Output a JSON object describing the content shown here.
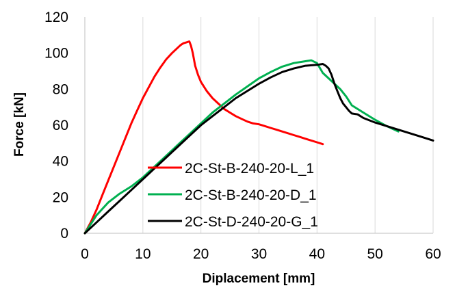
{
  "chart_data": {
    "type": "line",
    "xlabel": "Diplacement [mm]",
    "ylabel": "Force [kN]",
    "xlim": [
      0,
      60
    ],
    "ylim": [
      0,
      120
    ],
    "xticks": [
      "0",
      "10",
      "20",
      "30",
      "40",
      "50",
      "60"
    ],
    "yticks": [
      "0",
      "20",
      "40",
      "60",
      "80",
      "100",
      "120"
    ],
    "grid": "vertical",
    "legend_position": "lower-center",
    "series": [
      {
        "name": "2C-St-B-240-20-L_1",
        "color": "#ff0000",
        "x": [
          0,
          1,
          2,
          3,
          4,
          5,
          6,
          7,
          8,
          9,
          10,
          11,
          12,
          13,
          14,
          15,
          16,
          16.5,
          17,
          17.5,
          18,
          18.3,
          18.6,
          19,
          19.5,
          20,
          21,
          22,
          23,
          24,
          25,
          26,
          27,
          28,
          29,
          30,
          31,
          32,
          33,
          34,
          35,
          36,
          37,
          38,
          39,
          40,
          41
        ],
        "y": [
          0,
          6,
          13,
          21,
          29,
          37,
          45,
          53,
          61,
          68,
          75,
          81,
          87,
          92,
          96.5,
          100,
          103,
          104.5,
          105.5,
          106,
          106.5,
          104,
          100,
          93,
          88,
          84,
          79,
          75,
          72,
          69,
          67,
          65,
          63.5,
          62,
          61,
          60.5,
          59.5,
          58.5,
          57.5,
          56.5,
          55.5,
          54.5,
          53.5,
          52.5,
          51.5,
          50.5,
          49.5
        ]
      },
      {
        "name": "2C-St-B-240-20-D_1",
        "color": "#00b050",
        "x": [
          0,
          2,
          4,
          6,
          8,
          10,
          12,
          14,
          16,
          18,
          20,
          22,
          24,
          26,
          28,
          30,
          32,
          34,
          36,
          38,
          39,
          40,
          41,
          42,
          43,
          44,
          45,
          46,
          48,
          50,
          52,
          54
        ],
        "y": [
          0,
          10,
          17,
          22,
          26,
          31,
          37,
          43,
          49,
          55,
          61,
          67,
          72,
          77,
          81.5,
          86,
          89.5,
          92.5,
          94.5,
          95.5,
          96,
          94.5,
          89,
          86,
          83,
          80,
          76,
          71,
          67,
          63,
          59.5,
          56.5
        ]
      },
      {
        "name": "2C-St-D-240-20-G_1",
        "color": "#000000",
        "x": [
          0,
          2,
          4,
          6,
          8,
          10,
          12,
          14,
          16,
          18,
          20,
          22,
          24,
          26,
          28,
          30,
          32,
          34,
          36,
          38,
          40,
          41,
          41.5,
          42,
          42.5,
          43,
          43.5,
          44,
          44.5,
          45,
          45.5,
          46,
          47,
          48,
          50,
          52,
          54,
          56,
          58,
          60
        ],
        "y": [
          0,
          6,
          12,
          18,
          24,
          30,
          36,
          42,
          48,
          54,
          60,
          65,
          70,
          75,
          79,
          83,
          86.5,
          89.5,
          91.5,
          93,
          93.5,
          94,
          93,
          91.5,
          88,
          83,
          79,
          75,
          72,
          70,
          68,
          66.5,
          66,
          64,
          61.5,
          59.5,
          57.5,
          55.5,
          53.5,
          51.5
        ]
      }
    ]
  }
}
